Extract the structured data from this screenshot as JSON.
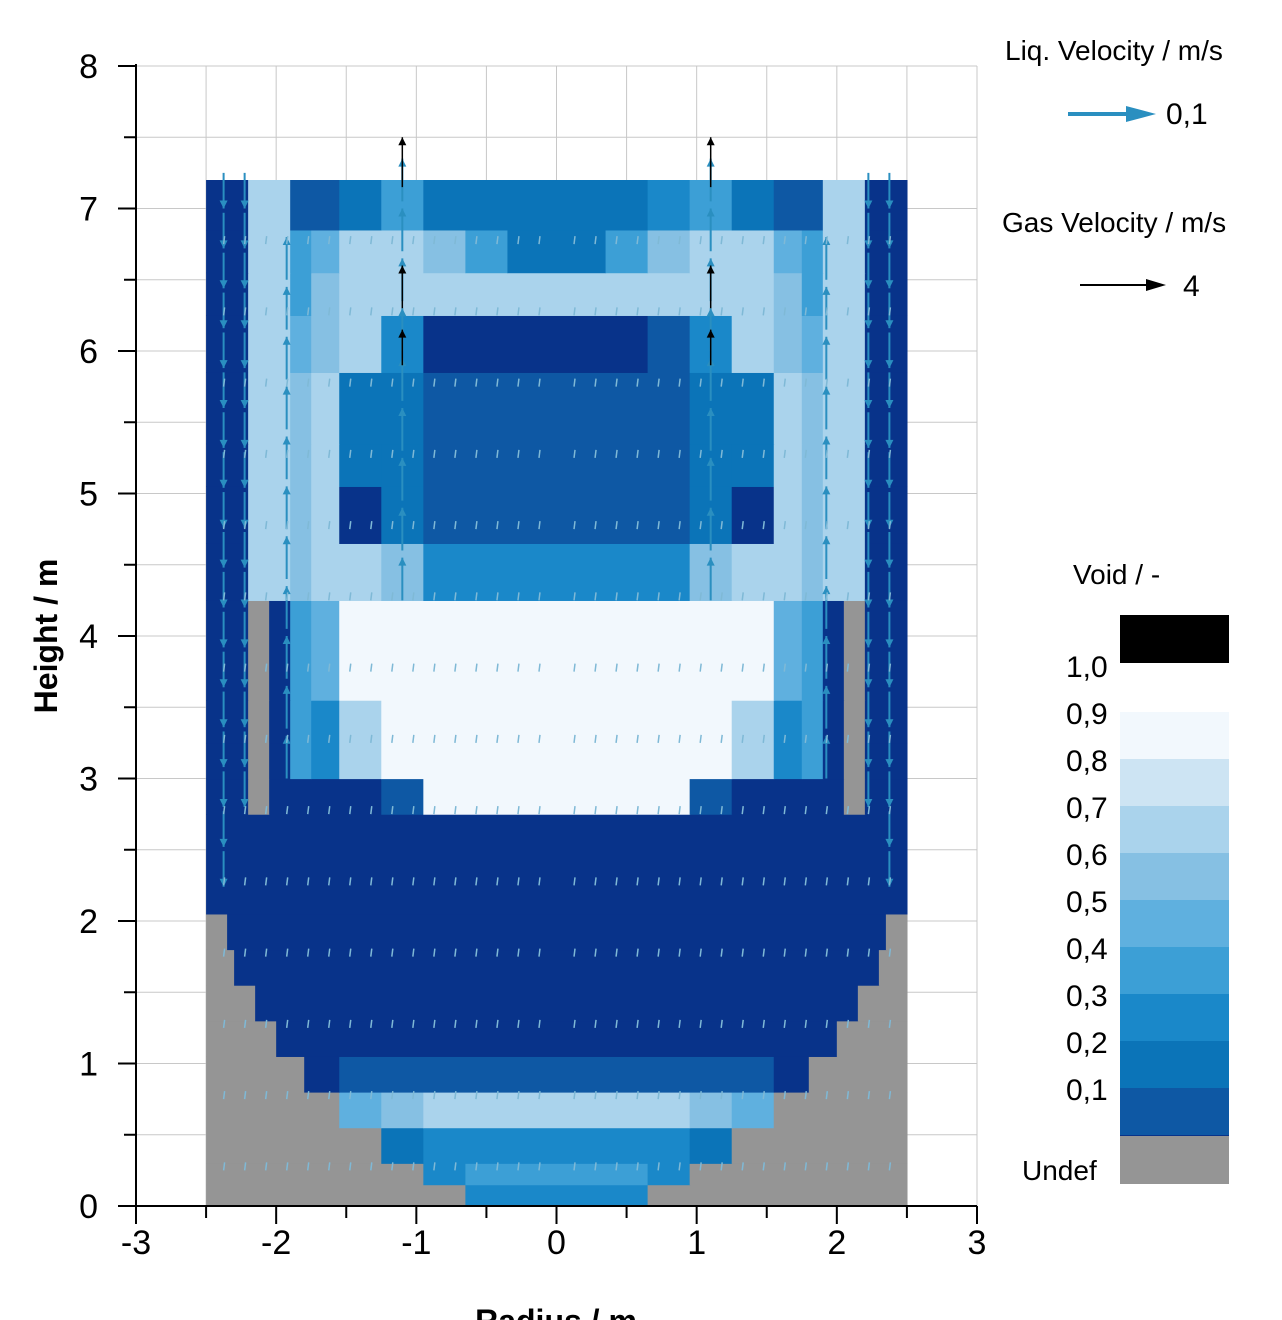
{
  "chart_data": {
    "type": "heatmap",
    "title": "",
    "xlabel": "Radius / m",
    "ylabel": "Height / m",
    "xlim": [
      -3,
      3
    ],
    "ylim": [
      0,
      8
    ],
    "x_ticks": [
      "-3",
      "-2",
      "-1",
      "0",
      "1",
      "2",
      "3"
    ],
    "y_ticks": [
      "0",
      "1",
      "2",
      "3",
      "4",
      "5",
      "6",
      "7",
      "8"
    ],
    "grid": true,
    "legend_position": "right",
    "vector_legend": {
      "liquid": {
        "title": "Liq. Velocity / m/s",
        "value_label": "0,1",
        "color": "#2a8fc0"
      },
      "gas": {
        "title": "Gas Velocity / m/s",
        "value_label": "4",
        "color": "#000000"
      }
    },
    "void_legend": {
      "title": "Void / -",
      "labels": [
        "1,0",
        "0,9",
        "0,8",
        "0,7",
        "0,6",
        "0,5",
        "0,4",
        "0,3",
        "0,2",
        "0,1"
      ],
      "undef_label": "Undef",
      "colors": [
        "#000000",
        "#f2f8fd",
        "#cde4f3",
        "#aad3ec",
        "#86c0e3",
        "#5fb0df",
        "#3c9fd6",
        "#1a88c9",
        "#0b74b8",
        "#0e58a4",
        "#08338a"
      ],
      "undef_color": "#959595"
    },
    "cell_columns_r": [
      -2.375,
      -2.225,
      -2.075,
      -1.925,
      -1.775,
      -1.625,
      -1.475,
      -1.325,
      -1.175,
      -1.025,
      -0.875,
      -0.725,
      -0.575,
      -0.425,
      -0.275,
      -0.125,
      0.125,
      0.275,
      0.425,
      0.575,
      0.725,
      0.875,
      1.025,
      1.175,
      1.325,
      1.475,
      1.625,
      1.775,
      1.925,
      2.075,
      2.225,
      2.375
    ],
    "void_rows": [
      {
        "y0": 0.0,
        "y1": 0.15,
        "segments": [
          [
            -2.5,
            -0.65,
            "undef"
          ],
          [
            -0.65,
            0.65,
            0.35
          ],
          [
            0.65,
            2.5,
            "undef"
          ]
        ]
      },
      {
        "y0": 0.15,
        "y1": 0.3,
        "segments": [
          [
            -2.5,
            -0.95,
            "undef"
          ],
          [
            -0.95,
            -0.65,
            0.35
          ],
          [
            -0.65,
            0.65,
            0.45
          ],
          [
            0.65,
            0.95,
            0.35
          ],
          [
            0.95,
            2.5,
            "undef"
          ]
        ]
      },
      {
        "y0": 0.3,
        "y1": 0.55,
        "segments": [
          [
            -2.5,
            -1.25,
            "undef"
          ],
          [
            -1.25,
            -0.95,
            0.25
          ],
          [
            -0.95,
            0.95,
            0.35
          ],
          [
            0.95,
            1.25,
            0.25
          ],
          [
            1.25,
            2.5,
            "undef"
          ]
        ]
      },
      {
        "y0": 0.55,
        "y1": 0.8,
        "segments": [
          [
            -2.5,
            -1.55,
            "undef"
          ],
          [
            -1.55,
            -1.25,
            0.55
          ],
          [
            -1.25,
            -0.95,
            0.65
          ],
          [
            -0.95,
            0.95,
            0.75
          ],
          [
            0.95,
            1.25,
            0.65
          ],
          [
            1.25,
            1.55,
            0.55
          ],
          [
            1.55,
            2.5,
            "undef"
          ]
        ]
      },
      {
        "y0": 0.8,
        "y1": 1.05,
        "segments": [
          [
            -2.5,
            -1.8,
            "undef"
          ],
          [
            -1.8,
            -1.55,
            0.05
          ],
          [
            -1.55,
            1.55,
            0.15
          ],
          [
            1.55,
            1.8,
            0.05
          ],
          [
            1.8,
            2.5,
            "undef"
          ]
        ]
      },
      {
        "y0": 1.05,
        "y1": 1.3,
        "segments": [
          [
            -2.5,
            -2.0,
            "undef"
          ],
          [
            -2.0,
            2.0,
            0.05
          ],
          [
            2.0,
            2.5,
            "undef"
          ]
        ]
      },
      {
        "y0": 1.3,
        "y1": 1.55,
        "segments": [
          [
            -2.5,
            -2.15,
            "undef"
          ],
          [
            -2.15,
            2.15,
            0.05
          ],
          [
            2.15,
            2.5,
            "undef"
          ]
        ]
      },
      {
        "y0": 1.55,
        "y1": 1.8,
        "segments": [
          [
            -2.5,
            -2.3,
            "undef"
          ],
          [
            -2.3,
            2.3,
            0.05
          ],
          [
            2.3,
            2.5,
            "undef"
          ]
        ]
      },
      {
        "y0": 1.8,
        "y1": 2.05,
        "segments": [
          [
            -2.5,
            -2.35,
            "undef"
          ],
          [
            -2.35,
            2.35,
            0.05
          ],
          [
            2.35,
            2.5,
            "undef"
          ]
        ]
      },
      {
        "y0": 2.05,
        "y1": 2.75,
        "segments": [
          [
            -2.5,
            2.5,
            0.05
          ]
        ]
      },
      {
        "y0": 2.75,
        "y1": 3.0,
        "segments": [
          [
            -2.5,
            -2.2,
            0.05
          ],
          [
            -2.2,
            -2.05,
            "undef"
          ],
          [
            -2.05,
            -1.25,
            0.05
          ],
          [
            -1.25,
            -0.95,
            0.15
          ],
          [
            -0.95,
            0.95,
            0.95
          ],
          [
            0.95,
            1.25,
            0.15
          ],
          [
            1.25,
            2.05,
            0.05
          ],
          [
            2.05,
            2.2,
            "undef"
          ],
          [
            2.2,
            2.5,
            0.05
          ]
        ]
      },
      {
        "y0": 3.0,
        "y1": 3.25,
        "segments": [
          [
            -2.5,
            -2.2,
            0.05
          ],
          [
            -2.2,
            -2.05,
            "undef"
          ],
          [
            -2.05,
            -1.9,
            0.05
          ],
          [
            -1.9,
            -1.75,
            0.45
          ],
          [
            -1.75,
            -1.55,
            0.35
          ],
          [
            -1.55,
            -1.25,
            0.75
          ],
          [
            -1.25,
            1.25,
            0.95
          ],
          [
            1.25,
            1.55,
            0.75
          ],
          [
            1.55,
            1.75,
            0.35
          ],
          [
            1.75,
            1.9,
            0.45
          ],
          [
            1.9,
            2.05,
            0.05
          ],
          [
            2.05,
            2.2,
            "undef"
          ],
          [
            2.2,
            2.5,
            0.05
          ]
        ]
      },
      {
        "y0": 3.25,
        "y1": 3.55,
        "segments": [
          [
            -2.5,
            -2.2,
            0.05
          ],
          [
            -2.2,
            -2.05,
            "undef"
          ],
          [
            -2.05,
            -1.9,
            0.05
          ],
          [
            -1.9,
            -1.75,
            0.45
          ],
          [
            -1.75,
            -1.55,
            0.35
          ],
          [
            -1.55,
            -1.25,
            0.75
          ],
          [
            -1.25,
            1.25,
            0.95
          ],
          [
            1.25,
            1.55,
            0.75
          ],
          [
            1.55,
            1.75,
            0.35
          ],
          [
            1.75,
            1.9,
            0.45
          ],
          [
            1.9,
            2.05,
            0.05
          ],
          [
            2.05,
            2.2,
            "undef"
          ],
          [
            2.2,
            2.5,
            0.05
          ]
        ]
      },
      {
        "y0": 3.55,
        "y1": 4.25,
        "segments": [
          [
            -2.5,
            -2.2,
            0.05
          ],
          [
            -2.2,
            -2.05,
            "undef"
          ],
          [
            -2.05,
            -1.9,
            0.05
          ],
          [
            -1.9,
            -1.75,
            0.45
          ],
          [
            -1.75,
            -1.55,
            0.55
          ],
          [
            -1.55,
            1.55,
            0.95
          ],
          [
            1.55,
            1.75,
            0.55
          ],
          [
            1.75,
            1.9,
            0.45
          ],
          [
            1.9,
            2.05,
            0.05
          ],
          [
            2.05,
            2.2,
            "undef"
          ],
          [
            2.2,
            2.5,
            0.05
          ]
        ]
      },
      {
        "y0": 4.25,
        "y1": 4.65,
        "segments": [
          [
            -2.5,
            -2.2,
            0.05
          ],
          [
            -2.2,
            -1.9,
            0.75
          ],
          [
            -1.9,
            -1.75,
            0.65
          ],
          [
            -1.75,
            -1.25,
            0.75
          ],
          [
            -1.25,
            -0.95,
            0.65
          ],
          [
            -0.95,
            0.95,
            0.35
          ],
          [
            0.95,
            1.25,
            0.65
          ],
          [
            1.25,
            1.75,
            0.75
          ],
          [
            1.75,
            1.9,
            0.65
          ],
          [
            1.9,
            2.2,
            0.75
          ],
          [
            2.2,
            2.5,
            0.05
          ]
        ]
      },
      {
        "y0": 4.65,
        "y1": 5.05,
        "segments": [
          [
            -2.5,
            -2.2,
            0.05
          ],
          [
            -2.2,
            -1.9,
            0.75
          ],
          [
            -1.9,
            -1.75,
            0.65
          ],
          [
            -1.75,
            -1.55,
            0.75
          ],
          [
            -1.55,
            -1.25,
            0.05
          ],
          [
            -1.25,
            -0.95,
            0.25
          ],
          [
            -0.95,
            0.95,
            0.15
          ],
          [
            0.95,
            1.25,
            0.25
          ],
          [
            1.25,
            1.55,
            0.05
          ],
          [
            1.55,
            1.75,
            0.75
          ],
          [
            1.75,
            1.9,
            0.65
          ],
          [
            1.9,
            2.2,
            0.75
          ],
          [
            2.2,
            2.5,
            0.05
          ]
        ]
      },
      {
        "y0": 5.05,
        "y1": 5.35,
        "segments": [
          [
            -2.5,
            -2.2,
            0.05
          ],
          [
            -2.2,
            -1.9,
            0.75
          ],
          [
            -1.9,
            -1.75,
            0.65
          ],
          [
            -1.75,
            -1.55,
            0.75
          ],
          [
            -1.55,
            -1.25,
            0.25
          ],
          [
            -1.25,
            -0.95,
            0.25
          ],
          [
            -0.95,
            0.95,
            0.15
          ],
          [
            0.95,
            1.25,
            0.25
          ],
          [
            1.25,
            1.55,
            0.25
          ],
          [
            1.55,
            1.75,
            0.75
          ],
          [
            1.75,
            1.9,
            0.65
          ],
          [
            1.9,
            2.2,
            0.75
          ],
          [
            2.2,
            2.5,
            0.05
          ]
        ]
      },
      {
        "y0": 5.35,
        "y1": 5.85,
        "segments": [
          [
            -2.5,
            -2.2,
            0.05
          ],
          [
            -2.2,
            -1.9,
            0.75
          ],
          [
            -1.9,
            -1.75,
            0.65
          ],
          [
            -1.75,
            -1.55,
            0.75
          ],
          [
            -1.55,
            -0.95,
            0.25
          ],
          [
            -0.95,
            0.95,
            0.15
          ],
          [
            0.95,
            1.55,
            0.25
          ],
          [
            1.55,
            1.75,
            0.75
          ],
          [
            1.75,
            1.9,
            0.65
          ],
          [
            1.9,
            2.2,
            0.75
          ],
          [
            2.2,
            2.5,
            0.05
          ]
        ]
      },
      {
        "y0": 5.85,
        "y1": 6.25,
        "segments": [
          [
            -2.5,
            -2.2,
            0.05
          ],
          [
            -2.2,
            -1.9,
            0.75
          ],
          [
            -1.9,
            -1.75,
            0.55
          ],
          [
            -1.75,
            -1.55,
            0.65
          ],
          [
            -1.55,
            -1.25,
            0.75
          ],
          [
            -1.25,
            -0.95,
            0.35
          ],
          [
            -0.95,
            0.65,
            0.05
          ],
          [
            0.65,
            0.95,
            0.15
          ],
          [
            0.95,
            1.25,
            0.35
          ],
          [
            1.25,
            1.55,
            0.75
          ],
          [
            1.55,
            1.75,
            0.65
          ],
          [
            1.75,
            1.9,
            0.55
          ],
          [
            1.9,
            2.2,
            0.75
          ],
          [
            2.2,
            2.5,
            0.05
          ]
        ]
      },
      {
        "y0": 6.25,
        "y1": 6.55,
        "segments": [
          [
            -2.5,
            -2.2,
            0.05
          ],
          [
            -2.2,
            -1.9,
            0.75
          ],
          [
            -1.9,
            -1.75,
            0.45
          ],
          [
            -1.75,
            -1.55,
            0.65
          ],
          [
            -1.55,
            1.55,
            0.75
          ],
          [
            1.55,
            1.75,
            0.65
          ],
          [
            1.75,
            1.9,
            0.45
          ],
          [
            1.9,
            2.2,
            0.75
          ],
          [
            2.2,
            2.5,
            0.05
          ]
        ]
      },
      {
        "y0": 6.55,
        "y1": 6.85,
        "segments": [
          [
            -2.5,
            -2.2,
            0.05
          ],
          [
            -2.2,
            -1.9,
            0.75
          ],
          [
            -1.9,
            -1.75,
            0.45
          ],
          [
            -1.75,
            -1.55,
            0.55
          ],
          [
            -1.55,
            -1.25,
            0.75
          ],
          [
            -1.25,
            -0.95,
            0.75
          ],
          [
            -0.95,
            -0.65,
            0.65
          ],
          [
            -0.65,
            -0.35,
            0.45
          ],
          [
            -0.35,
            0.35,
            0.25
          ],
          [
            0.35,
            0.65,
            0.45
          ],
          [
            0.65,
            0.95,
            0.65
          ],
          [
            0.95,
            1.55,
            0.75
          ],
          [
            1.55,
            1.75,
            0.55
          ],
          [
            1.75,
            1.9,
            0.45
          ],
          [
            1.9,
            2.2,
            0.75
          ],
          [
            2.2,
            2.5,
            0.05
          ]
        ]
      },
      {
        "y0": 6.85,
        "y1": 7.2,
        "segments": [
          [
            -2.5,
            -2.2,
            0.05
          ],
          [
            -2.2,
            -1.9,
            0.75
          ],
          [
            -1.9,
            -1.55,
            0.15
          ],
          [
            -1.55,
            -1.25,
            0.25
          ],
          [
            -1.25,
            -0.95,
            0.45
          ],
          [
            -0.95,
            0.65,
            0.25
          ],
          [
            0.65,
            0.95,
            0.35
          ],
          [
            0.95,
            1.25,
            0.45
          ],
          [
            1.25,
            1.55,
            0.25
          ],
          [
            1.55,
            1.9,
            0.15
          ],
          [
            1.9,
            2.2,
            0.75
          ],
          [
            2.2,
            2.5,
            0.05
          ]
        ]
      }
    ],
    "liquid_vectors": [
      {
        "r": -2.375,
        "y0": 7.25,
        "y1": 2.3,
        "step": 0.28,
        "u": 0.0,
        "v": -0.25
      },
      {
        "r": -2.225,
        "y0": 7.25,
        "y1": 3.0,
        "step": 0.28,
        "u": 0.0,
        "v": -0.25
      },
      {
        "r": 2.225,
        "y0": 7.25,
        "y1": 3.0,
        "step": 0.28,
        "u": 0.0,
        "v": -0.25
      },
      {
        "r": 2.375,
        "y0": 7.25,
        "y1": 2.3,
        "step": 0.28,
        "u": 0.0,
        "v": -0.25
      },
      {
        "r": -1.925,
        "y0": 3.0,
        "y1": 6.6,
        "step": 0.35,
        "u": 0.0,
        "v": 0.3
      },
      {
        "r": -1.1,
        "y0": 4.25,
        "y1": 7.15,
        "step": 0.35,
        "u": 0.0,
        "v": 0.3
      },
      {
        "r": 1.1,
        "y0": 4.25,
        "y1": 7.15,
        "step": 0.35,
        "u": 0.0,
        "v": 0.3
      },
      {
        "r": 1.925,
        "y0": 3.0,
        "y1": 6.6,
        "step": 0.35,
        "u": 0.0,
        "v": 0.3
      }
    ],
    "gas_vectors": [
      {
        "r": -1.1,
        "y": 7.15,
        "u": 0.0,
        "v": 0.35
      },
      {
        "r": -1.1,
        "y": 6.3,
        "u": 0.0,
        "v": 0.3
      },
      {
        "r": -1.1,
        "y": 5.9,
        "u": 0.0,
        "v": 0.25
      },
      {
        "r": 1.1,
        "y": 7.15,
        "u": 0.0,
        "v": 0.35
      },
      {
        "r": 1.1,
        "y": 6.3,
        "u": 0.0,
        "v": 0.3
      },
      {
        "r": 1.1,
        "y": 5.9,
        "u": 0.0,
        "v": 0.25
      }
    ]
  }
}
